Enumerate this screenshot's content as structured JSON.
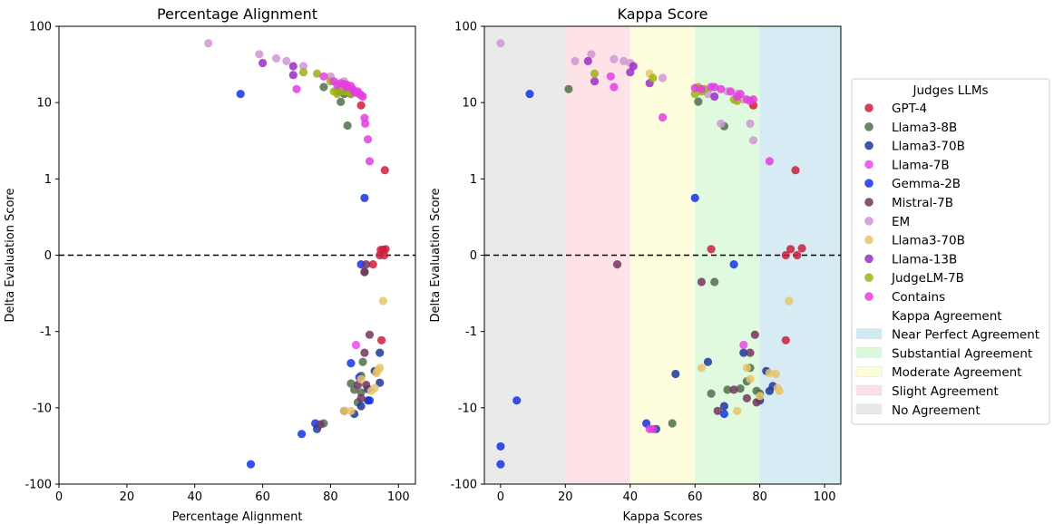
{
  "chart_data": [
    {
      "type": "scatter",
      "title": "Percentage Alignment",
      "xlabel": "Percentage Alignment",
      "ylabel": "Delta Evaluation Score",
      "xlim": [
        0,
        105
      ],
      "xticks": [
        "0",
        "20",
        "40",
        "60",
        "80",
        "100"
      ],
      "yticks": [
        "100",
        "10",
        "1",
        "0",
        "-1",
        "-10",
        "-100"
      ],
      "yscale": "symlog",
      "reference_line": 0,
      "series": [
        {
          "name": "GPT-4",
          "color": "#cc1f3a",
          "points": [
            [
              89,
              9.2
            ],
            [
              95,
              -1.3
            ],
            [
              92.5,
              -0.12
            ],
            [
              94.5,
              0
            ],
            [
              95.8,
              0
            ],
            [
              96.2,
              0.08
            ],
            [
              95.5,
              0.07
            ],
            [
              94.8,
              0.07
            ],
            [
              96,
              1.3
            ]
          ]
        },
        {
          "name": "Llama3-8B",
          "color": "#4f6e4b",
          "points": [
            [
              78,
              -16
            ],
            [
              83,
              10.2
            ],
            [
              85,
              5
            ],
            [
              87,
              -5.8
            ],
            [
              89,
              -6.3
            ],
            [
              90,
              -0.22
            ],
            [
              89.5,
              -2.5
            ],
            [
              86,
              -4.8
            ],
            [
              78,
              16
            ],
            [
              82,
              14
            ],
            [
              84,
              13
            ],
            [
              89,
              -3.8
            ],
            [
              88,
              -8.5
            ]
          ]
        },
        {
          "name": "Llama3-70B",
          "color": "#1d3796",
          "points": [
            [
              76,
              -19
            ],
            [
              87,
              -12
            ],
            [
              89,
              -9.5
            ],
            [
              91,
              -8
            ],
            [
              93,
              -3.3
            ],
            [
              94.5,
              -1.9
            ],
            [
              94.5,
              -4.7
            ],
            [
              91,
              -5.7
            ]
          ]
        },
        {
          "name": "Llama-7B",
          "color": "#ea48ea",
          "points": [
            [
              87.5,
              -1.5
            ]
          ]
        },
        {
          "name": "Gemma-2B",
          "color": "#1532e3",
          "points": [
            [
              53.5,
              13
            ],
            [
              56.5,
              -55
            ],
            [
              71.5,
              -22
            ],
            [
              75.5,
              -16
            ],
            [
              86,
              -2.6
            ],
            [
              88.5,
              -4
            ],
            [
              89,
              -0.12
            ],
            [
              90,
              0.75
            ],
            [
              91.5,
              -8
            ]
          ]
        },
        {
          "name": "Mistral-7B",
          "color": "#73345f",
          "points": [
            [
              77,
              -16.5
            ],
            [
              84,
              -11
            ],
            [
              88,
              -5
            ],
            [
              89,
              -7.5
            ],
            [
              90,
              -1.9
            ],
            [
              90.5,
              -5
            ],
            [
              91.5,
              -1.1
            ],
            [
              90,
              -0.22
            ],
            [
              90.5,
              -0.12
            ]
          ]
        },
        {
          "name": "EM",
          "color": "#cf97d3",
          "points": [
            [
              44,
              60
            ],
            [
              59,
              43
            ],
            [
              64,
              38
            ],
            [
              67,
              35
            ],
            [
              72,
              30
            ],
            [
              80,
              22
            ],
            [
              84,
              19
            ]
          ]
        },
        {
          "name": "Llama3-70B",
          "color": "#e9c46a",
          "points": [
            [
              84,
              -11
            ],
            [
              86,
              -11
            ],
            [
              89,
              -4.2
            ],
            [
              92,
              -6
            ],
            [
              93,
              -5.5
            ],
            [
              93.5,
              -3.5
            ],
            [
              94,
              -3.2
            ],
            [
              94.5,
              -3.0
            ],
            [
              95.5,
              -0.6
            ]
          ]
        },
        {
          "name": "Llama-13B",
          "color": "#9b2ec4",
          "points": [
            [
              60,
              33
            ],
            [
              69,
              23
            ],
            [
              69,
              30
            ],
            [
              82,
              14
            ],
            [
              86,
              13
            ]
          ]
        },
        {
          "name": "JudgeLM-7B",
          "color": "#9db214",
          "points": [
            [
              72,
              25
            ],
            [
              76,
              24
            ],
            [
              80,
              19
            ],
            [
              81,
              14
            ],
            [
              82,
              13
            ],
            [
              83,
              16
            ],
            [
              84,
              14
            ],
            [
              85,
              14
            ],
            [
              86,
              13
            ]
          ]
        },
        {
          "name": "Contains",
          "color": "#e43de0",
          "points": [
            [
              70,
              15
            ],
            [
              78,
              22
            ],
            [
              81,
              19
            ],
            [
              82,
              17
            ],
            [
              83,
              18
            ],
            [
              84,
              17.5
            ],
            [
              84.5,
              16
            ],
            [
              85,
              17
            ],
            [
              86,
              16.5
            ],
            [
              86.5,
              15
            ],
            [
              87,
              14
            ],
            [
              87.5,
              13.5
            ],
            [
              88,
              14
            ],
            [
              88.5,
              13
            ],
            [
              89,
              12.5
            ],
            [
              89.5,
              12
            ],
            [
              90,
              6.3
            ],
            [
              90.2,
              5.3
            ],
            [
              91,
              3.3
            ],
            [
              91.5,
              1.7
            ]
          ]
        }
      ]
    },
    {
      "type": "scatter",
      "title": "Kappa Score",
      "xlabel": "Kappa Scores",
      "ylabel": "Delta Evaluation Score",
      "xlim": [
        -5,
        105
      ],
      "xticks": [
        "0",
        "20",
        "40",
        "60",
        "80",
        "100"
      ],
      "yticks": [
        "100",
        "10",
        "1",
        "0",
        "-1",
        "-10",
        "-100"
      ],
      "yscale": "symlog",
      "reference_line": 0,
      "bands": [
        {
          "label": "No Agreement",
          "range": [
            -5,
            20
          ],
          "color": "#e8e8e8"
        },
        {
          "label": "Slight Agreement",
          "range": [
            20,
            40
          ],
          "color": "#fde0e6"
        },
        {
          "label": "Moderate Agreement",
          "range": [
            40,
            60
          ],
          "color": "#fdfdd9"
        },
        {
          "label": "Substantial Agreement",
          "range": [
            60,
            80
          ],
          "color": "#dcf9dc"
        },
        {
          "label": "Near Perfect Agreement",
          "range": [
            80,
            105
          ],
          "color": "#d1e9f3"
        }
      ],
      "series": [
        {
          "name": "GPT-4",
          "color": "#cc1f3a",
          "points": [
            [
              78,
              9.2
            ],
            [
              88,
              -1.3
            ],
            [
              88,
              0
            ],
            [
              91.5,
              0
            ],
            [
              89.5,
              0.08
            ],
            [
              93,
              0.09
            ],
            [
              91,
              1.3
            ],
            [
              65,
              0.08
            ]
          ]
        },
        {
          "name": "Llama3-8B",
          "color": "#4f6e4b",
          "points": [
            [
              21,
              15
            ],
            [
              53,
              -16
            ],
            [
              61,
              10.3
            ],
            [
              65,
              -6.5
            ],
            [
              66,
              -0.35
            ],
            [
              69,
              4.9
            ],
            [
              70,
              -5.8
            ],
            [
              74,
              -5.6
            ],
            [
              76,
              -4.5
            ],
            [
              77,
              -3
            ],
            [
              79,
              -6
            ],
            [
              80,
              -6.5
            ]
          ]
        },
        {
          "name": "Llama3-70B",
          "color": "#1d3796",
          "points": [
            [
              48,
              -19
            ],
            [
              54,
              -3.6
            ],
            [
              64,
              -2.5
            ],
            [
              69,
              -9.5
            ],
            [
              75,
              -1.9
            ],
            [
              80,
              -8
            ],
            [
              82,
              -3.3
            ],
            [
              83,
              -6
            ],
            [
              84,
              -5.2
            ]
          ]
        },
        {
          "name": "Llama-7B",
          "color": "#ea48ea",
          "points": [
            [
              75,
              -1.5
            ]
          ]
        },
        {
          "name": "Gemma-2B",
          "color": "#1532e3",
          "points": [
            [
              0,
              -32
            ],
            [
              0,
              -55
            ],
            [
              5,
              -8
            ],
            [
              9,
              13
            ],
            [
              45,
              -16
            ],
            [
              60,
              0.75
            ],
            [
              69,
              -12
            ],
            [
              72,
              -0.12
            ]
          ]
        },
        {
          "name": "Mistral-7B",
          "color": "#73345f",
          "points": [
            [
              36,
              -0.12
            ],
            [
              62,
              -0.35
            ],
            [
              67,
              -11
            ],
            [
              72,
              -5.8
            ],
            [
              76,
              -7.5
            ],
            [
              77,
              -1.9
            ],
            [
              78.5,
              -1.1
            ],
            [
              79,
              -8.5
            ]
          ]
        },
        {
          "name": "EM",
          "color": "#cf97d3",
          "points": [
            [
              0,
              60
            ],
            [
              23,
              35
            ],
            [
              28,
              43
            ],
            [
              35,
              37
            ],
            [
              38,
              35
            ],
            [
              40,
              33
            ],
            [
              50,
              21
            ],
            [
              64,
              13
            ],
            [
              68,
              5.3
            ],
            [
              70,
              14
            ],
            [
              73,
              13
            ],
            [
              75,
              11
            ],
            [
              77,
              5.3
            ],
            [
              78,
              3.2
            ]
          ]
        },
        {
          "name": "Llama3-70B",
          "color": "#e9c46a",
          "points": [
            [
              46,
              24
            ],
            [
              62,
              -3
            ],
            [
              76,
              -3
            ],
            [
              77,
              -4.2
            ],
            [
              80,
              -7
            ],
            [
              83,
              -3.5
            ],
            [
              85,
              -3.6
            ],
            [
              85.5,
              -5.5
            ],
            [
              86,
              -6
            ],
            [
              89,
              -0.6
            ],
            [
              73,
              -11
            ]
          ]
        },
        {
          "name": "Llama-13B",
          "color": "#9b2ec4",
          "points": [
            [
              27,
              35
            ],
            [
              29,
              19
            ],
            [
              40,
              25
            ],
            [
              41,
              30
            ],
            [
              46,
              18
            ],
            [
              66,
              12
            ]
          ]
        },
        {
          "name": "JudgeLM-7B",
          "color": "#9db214",
          "points": [
            [
              29,
              24
            ],
            [
              47,
              21
            ],
            [
              60,
              13
            ],
            [
              61,
              16
            ],
            [
              62,
              14
            ],
            [
              63,
              15
            ],
            [
              72,
              11
            ],
            [
              73,
              10.5
            ]
          ]
        },
        {
          "name": "Contains",
          "color": "#e43de0",
          "points": [
            [
              34,
              22
            ],
            [
              35,
              16
            ],
            [
              46,
              -19
            ],
            [
              47,
              -19
            ],
            [
              50,
              6.4
            ],
            [
              60,
              15.5
            ],
            [
              62,
              15
            ],
            [
              65,
              16
            ],
            [
              66,
              16
            ],
            [
              68,
              15
            ],
            [
              71,
              14
            ],
            [
              73,
              12
            ],
            [
              74,
              13
            ],
            [
              76,
              11
            ],
            [
              77,
              10.5
            ],
            [
              78,
              11
            ],
            [
              83,
              1.7
            ]
          ]
        }
      ]
    }
  ],
  "legend": {
    "title": "Judges LLMs",
    "entries": [
      {
        "label": "GPT-4",
        "color": "#cc1f3a",
        "kind": "marker"
      },
      {
        "label": "Llama3-8B",
        "color": "#4f6e4b",
        "kind": "marker"
      },
      {
        "label": "Llama3-70B",
        "color": "#1d3796",
        "kind": "marker"
      },
      {
        "label": "Llama-7B",
        "color": "#ea48ea",
        "kind": "marker"
      },
      {
        "label": "Gemma-2B",
        "color": "#1532e3",
        "kind": "marker"
      },
      {
        "label": "Mistral-7B",
        "color": "#73345f",
        "kind": "marker"
      },
      {
        "label": "EM",
        "color": "#cf97d3",
        "kind": "marker"
      },
      {
        "label": "Llama3-70B",
        "color": "#e9c46a",
        "kind": "marker"
      },
      {
        "label": "Llama-13B",
        "color": "#9b2ec4",
        "kind": "marker"
      },
      {
        "label": "JudgeLM-7B",
        "color": "#9db214",
        "kind": "marker"
      },
      {
        "label": "Contains",
        "color": "#e43de0",
        "kind": "marker"
      },
      {
        "label": "Kappa Agreement",
        "color": "",
        "kind": "header"
      },
      {
        "label": "Near Perfect Agreement",
        "color": "#d1e9f3",
        "kind": "patch"
      },
      {
        "label": "Substantial Agreement",
        "color": "#dcf9dc",
        "kind": "patch"
      },
      {
        "label": "Moderate Agreement",
        "color": "#fdfdd9",
        "kind": "patch"
      },
      {
        "label": "Slight Agreement",
        "color": "#fde0e6",
        "kind": "patch"
      },
      {
        "label": "No Agreement",
        "color": "#e8e8e8",
        "kind": "patch"
      }
    ]
  }
}
